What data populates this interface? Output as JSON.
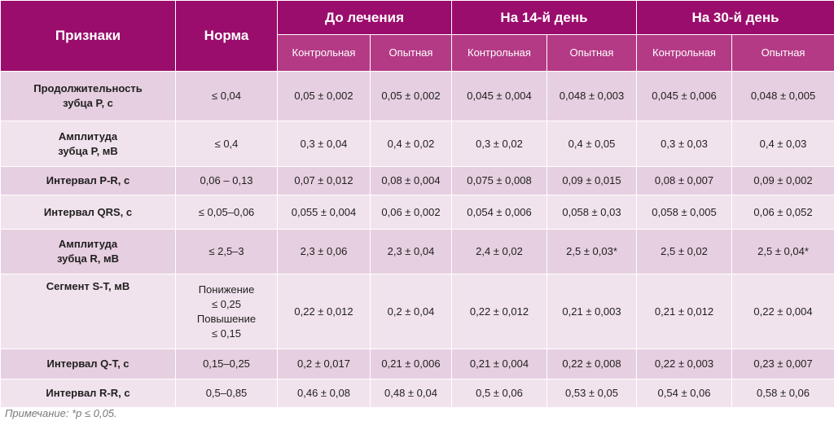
{
  "header": {
    "col_feature": "Признаки",
    "col_norm": "Норма",
    "groups": [
      "До лечения",
      "На 14-й день",
      "На 30-й день"
    ],
    "subgroups": [
      "Контрольная",
      "Опытная"
    ]
  },
  "rows": [
    {
      "feature_l1": "Продолжительность",
      "feature_l2": "зубца P, с",
      "norm_l1": "≤ 0,04",
      "norm_l2": "",
      "norm_l3": "",
      "norm_l4": "",
      "values": [
        "0,05 ± 0,002",
        "0,05 ± 0,002",
        "0,045 ± 0,004",
        "0,048 ± 0,003",
        "0,045 ± 0,006",
        "0,048 ± 0,005"
      ]
    },
    {
      "feature_l1": "Амплитуда",
      "feature_l2": "зубца P, мВ",
      "norm_l1": "≤ 0,4",
      "norm_l2": "",
      "norm_l3": "",
      "norm_l4": "",
      "values": [
        "0,3 ± 0,04",
        "0,4 ± 0,02",
        "0,3 ± 0,02",
        "0,4 ± 0,05",
        "0,3 ± 0,03",
        "0,4 ± 0,03"
      ]
    },
    {
      "feature_l1": "Интервал P-R, с",
      "feature_l2": "",
      "norm_l1": "0,06 – 0,13",
      "norm_l2": "",
      "norm_l3": "",
      "norm_l4": "",
      "values": [
        "0,07 ± 0,012",
        "0,08 ± 0,004",
        "0,075 ± 0,008",
        "0,09 ± 0,015",
        "0,08 ± 0,007",
        "0,09 ± 0,002"
      ]
    },
    {
      "feature_l1": "Интервал QRS, с",
      "feature_l2": "",
      "norm_l1": "≤ 0,05–0,06",
      "norm_l2": "",
      "norm_l3": "",
      "norm_l4": "",
      "values": [
        "0,055 ± 0,004",
        "0,06 ± 0,002",
        "0,054 ± 0,006",
        "0,058 ± 0,03",
        "0,058 ± 0,005",
        "0,06 ± 0,052"
      ]
    },
    {
      "feature_l1": "Амплитуда",
      "feature_l2": "зубца R, мВ",
      "norm_l1": "≤ 2,5–3",
      "norm_l2": "",
      "norm_l3": "",
      "norm_l4": "",
      "values": [
        "2,3 ± 0,06",
        "2,3 ± 0,04",
        "2,4 ± 0,02",
        "2,5 ± 0,03*",
        "2,5 ± 0,02",
        "2,5 ± 0,04*"
      ]
    },
    {
      "feature_l1": "Сегмент S-T, мВ",
      "feature_l2": "",
      "norm_l1": "Понижение",
      "norm_l2": "≤ 0,25",
      "norm_l3": "Повышение",
      "norm_l4": "≤ 0,15",
      "values": [
        "0,22 ± 0,012",
        "0,2 ± 0,04",
        "0,22 ± 0,012",
        "0,21 ± 0,003",
        "0,21 ± 0,012",
        "0,22 ± 0,004"
      ]
    },
    {
      "feature_l1": "Интервал Q-T, с",
      "feature_l2": "",
      "norm_l1": "0,15–0,25",
      "norm_l2": "",
      "norm_l3": "",
      "norm_l4": "",
      "values": [
        "0,2 ± 0,017",
        "0,21 ± 0,006",
        "0,21 ± 0,004",
        "0,22 ± 0,008",
        "0,22 ± 0,003",
        "0,23 ± 0,007"
      ]
    },
    {
      "feature_l1": "Интервал R-R, с",
      "feature_l2": "",
      "norm_l1": "0,5–0,85",
      "norm_l2": "",
      "norm_l3": "",
      "norm_l4": "",
      "values": [
        "0,46 ± 0,08",
        "0,48 ± 0,04",
        "0,5 ± 0,06",
        "0,53 ± 0,05",
        "0,54 ± 0,06",
        "0,58 ± 0,06"
      ]
    }
  ],
  "note": "Примечание: *р ≤ 0,05."
}
